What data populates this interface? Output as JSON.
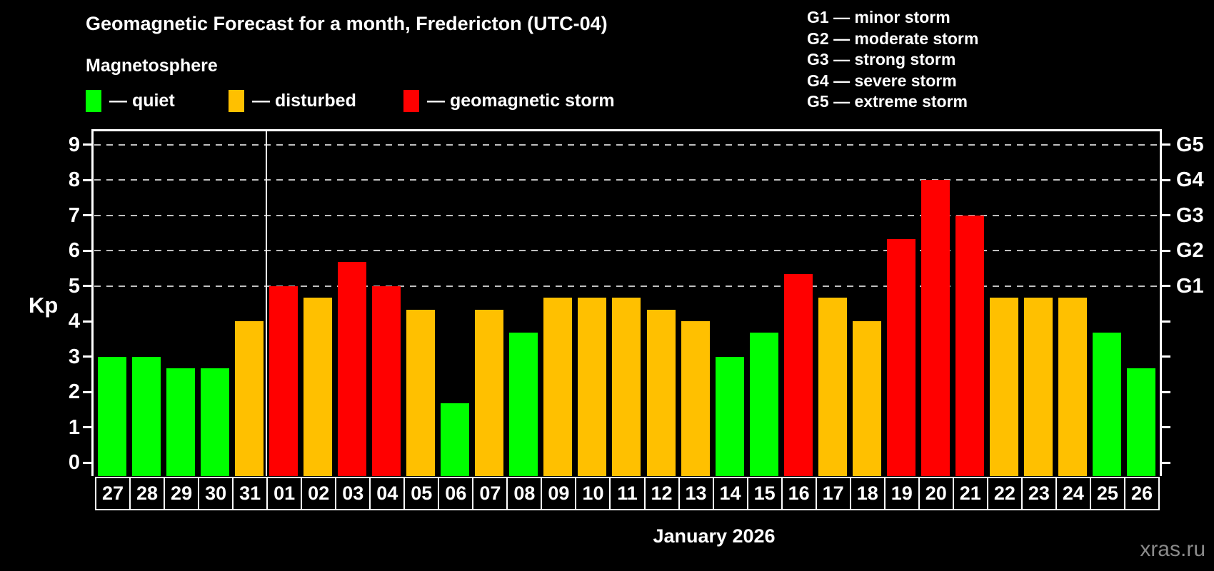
{
  "title": "Geomagnetic Forecast for a month, Fredericton (UTC-04)",
  "subtitle": "Magnetosphere",
  "legend": {
    "items": [
      {
        "status": "quiet",
        "color": "#00ff00",
        "label": "— quiet"
      },
      {
        "status": "disturbed",
        "color": "#ffc000",
        "label": "— disturbed"
      },
      {
        "status": "storm",
        "color": "#ff0000",
        "label": "— geomagnetic storm"
      }
    ]
  },
  "storm_legend": {
    "lines": [
      "G1 — minor storm",
      "G2 — moderate storm",
      "G3 — strong storm",
      "G4 — severe storm",
      "G5 — extreme storm"
    ]
  },
  "axes": {
    "kp_label": "Kp",
    "left_ticks": [
      "0",
      "1",
      "2",
      "3",
      "4",
      "5",
      "6",
      "7",
      "8",
      "9"
    ],
    "right_labels": [
      {
        "value": 5,
        "label": "G1"
      },
      {
        "value": 6,
        "label": "G2"
      },
      {
        "value": 7,
        "label": "G3"
      },
      {
        "value": 8,
        "label": "G4"
      },
      {
        "value": 9,
        "label": "G5"
      }
    ],
    "x_label": "January 2026"
  },
  "watermark": "xras.ru",
  "chart_data": {
    "type": "bar",
    "title": "Geomagnetic Forecast for a month, Fredericton (UTC-04)",
    "xlabel": "January 2026",
    "ylabel": "Kp",
    "ylim": [
      0,
      9
    ],
    "gridlines_at": [
      5,
      6,
      7,
      8,
      9
    ],
    "grid": "dashed horizontal lines at storm levels G1–G5 only",
    "legend_position": "top-left statuses, top-right G-scale",
    "month_separator_before": "01",
    "categories": [
      "27",
      "28",
      "29",
      "30",
      "31",
      "01",
      "02",
      "03",
      "04",
      "05",
      "06",
      "07",
      "08",
      "09",
      "10",
      "11",
      "12",
      "13",
      "14",
      "15",
      "16",
      "17",
      "18",
      "19",
      "20",
      "21",
      "22",
      "23",
      "24",
      "25",
      "26"
    ],
    "values": [
      3,
      3,
      2.67,
      2.67,
      4,
      5,
      4.67,
      5.67,
      5,
      4.33,
      1.67,
      4.33,
      3.67,
      4.67,
      4.67,
      4.67,
      4.33,
      4,
      3,
      3.67,
      5.33,
      4.67,
      4,
      6.33,
      8,
      7,
      4.67,
      4.67,
      4.67,
      3.67,
      2.67
    ],
    "statuses": [
      "quiet",
      "quiet",
      "quiet",
      "quiet",
      "disturbed",
      "storm",
      "disturbed",
      "storm",
      "storm",
      "disturbed",
      "quiet",
      "disturbed",
      "quiet",
      "disturbed",
      "disturbed",
      "disturbed",
      "disturbed",
      "disturbed",
      "quiet",
      "quiet",
      "storm",
      "disturbed",
      "disturbed",
      "storm",
      "storm",
      "storm",
      "disturbed",
      "disturbed",
      "disturbed",
      "quiet",
      "quiet"
    ]
  }
}
